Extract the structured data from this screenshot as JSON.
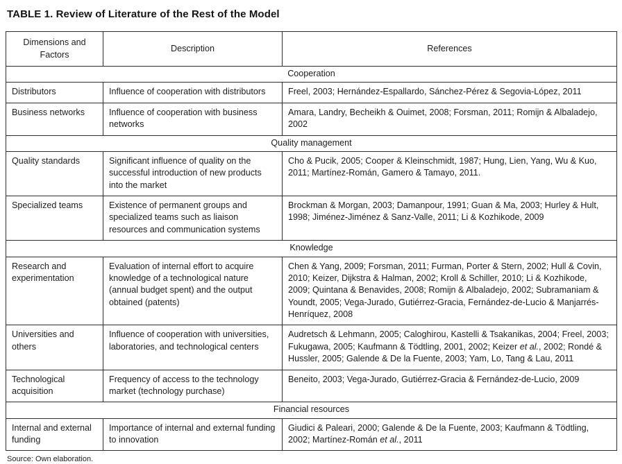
{
  "title": "TABLE 1. Review of Literature of the Rest of the Model",
  "source_note": "Source: Own elaboration.",
  "table": {
    "columns": [
      "Dimensions and Factors",
      "Description",
      "References"
    ],
    "sections": [
      {
        "name": "Cooperation",
        "rows": [
          {
            "factor": "Distributors",
            "description": "Influence of cooperation with distributors",
            "references": "Freel, 2003; Hernández-Espallardo, Sánchez-Pérez & Segovia-López, 2011"
          },
          {
            "factor": "Business networks",
            "description": "Influence of cooperation with business networks",
            "references": "Amara, Landry, Becheikh & Ouimet, 2008; Forsman, 2011; Romijn & Albaladejo, 2002"
          }
        ]
      },
      {
        "name": "Quality management",
        "rows": [
          {
            "factor": "Quality standards",
            "description": "Significant influence of quality on the successful introduction of new products into the market",
            "references": "Cho & Pucik, 2005; Cooper & Kleinschmidt, 1987; Hung, Lien, Yang, Wu & Kuo, 2011; Martínez-Román, Gamero & Tamayo, 2011."
          },
          {
            "factor": "Specialized teams",
            "description": "Existence of permanent groups and specialized teams such as liaison resources and communication systems",
            "references": "Brockman & Morgan, 2003; Damanpour, 1991; Guan & Ma, 2003; Hurley & Hult, 1998; Jiménez-Jiménez & Sanz-Valle, 2011; Li & Kozhikode, 2009"
          }
        ]
      },
      {
        "name": "Knowledge",
        "rows": [
          {
            "factor": "Research and experimentation",
            "description": "Evaluation of internal effort to acquire knowledge of a technological nature (annual budget spent) and the output obtained (patents)",
            "references": "Chen & Yang, 2009; Forsman, 2011; Furman, Porter & Stern, 2002; Hull & Covin, 2010; Keizer, Dijkstra & Halman, 2002; Kroll & Schiller, 2010; Li & Kozhikode, 2009; Quintana & Benavides, 2008; Romijn & Albaladejo, 2002; Subramaniam & Youndt, 2005; Vega-Jurado, Gutiérrez-Gracia, Fernández-de-Lucio & Manjarrés-Henríquez, 2008"
          },
          {
            "factor": "Universities and others",
            "description": "Influence of cooperation with universities, laboratories, and technological centers",
            "references": "Audretsch & Lehmann, 2005; Caloghirou, Kastelli & Tsakanikas, 2004; Freel, 2003; Fukugawa, 2005; Kaufmann & Tödtling, 2001, 2002; Keizer et al., 2002; Rondé & Hussler, 2005; Galende & De la Fuente, 2003; Yam, Lo, Tang & Lau, 2011"
          },
          {
            "factor": "Technological acquisition",
            "description": "Frequency of access to the technology market (technology purchase)",
            "references": "Beneito, 2003; Vega-Jurado, Gutiérrez-Gracia & Fernández-de-Lucio, 2009"
          }
        ]
      },
      {
        "name": "Financial resources",
        "rows": [
          {
            "factor": "Internal and external funding",
            "description": "Importance of internal and external funding to innovation",
            "references": "Giudici & Paleari, 2000; Galende & De la Fuente, 2003; Kaufmann & Tödtling, 2002; Martínez-Román et al., 2011"
          }
        ]
      }
    ]
  }
}
